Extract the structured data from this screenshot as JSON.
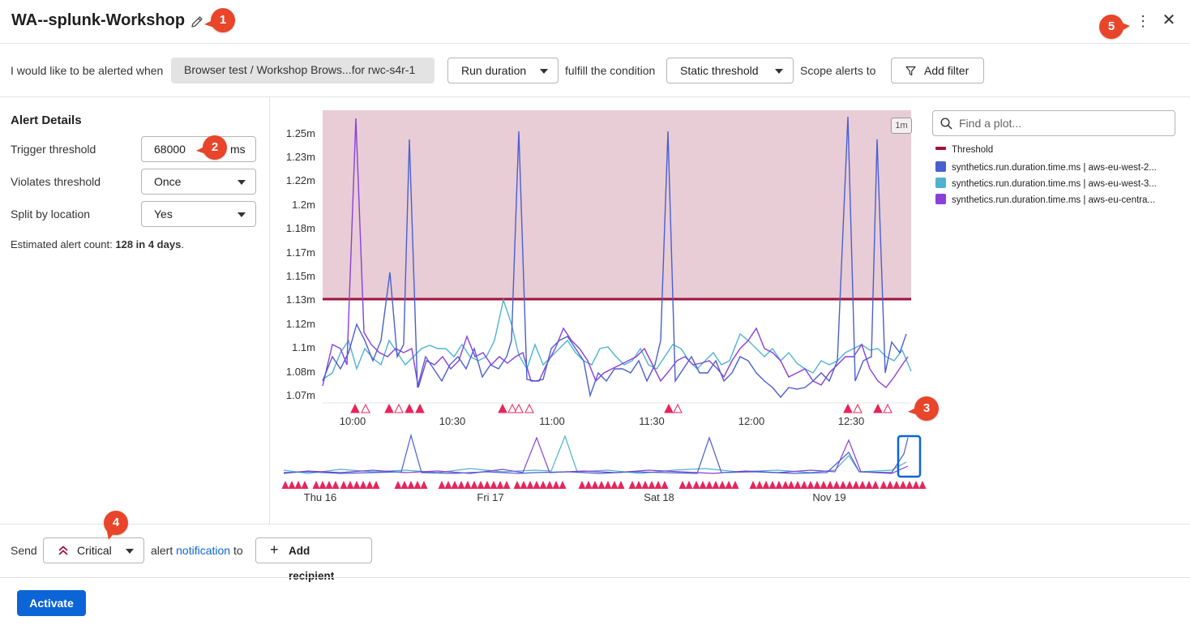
{
  "header": {
    "title": "WA--splunk-Workshop",
    "badges": [
      "1",
      "2",
      "3",
      "4",
      "5"
    ],
    "kebab_glyph": "⋮",
    "close_glyph": "✕"
  },
  "condition": {
    "intro": "I would like to be alerted when",
    "source": "Browser test  /  Workshop Brows...for rwc-s4r-1",
    "metric": "Run duration",
    "fulfill": "fulfill the condition",
    "condition": "Static threshold",
    "scope": "Scope alerts to",
    "add_filter": "Add filter"
  },
  "details": {
    "heading": "Alert Details",
    "trigger_label": "Trigger threshold",
    "trigger_value": "68000",
    "trigger_unit": "ms",
    "violates_label": "Violates threshold",
    "violates_value": "Once",
    "split_label": "Split by location",
    "split_value": "Yes",
    "estimate_prefix": "Estimated alert count:",
    "estimate_value": "128 in 4 days",
    "estimate_suffix": "."
  },
  "plot": {
    "search_placeholder": "Find a plot...",
    "resolution": "1m",
    "legend": [
      {
        "label": "Threshold",
        "color": "#a0123a"
      },
      {
        "label": "synthetics.run.duration.time.ms | aws-eu-west-2...",
        "color": "#4a5fd0"
      },
      {
        "label": "synthetics.run.duration.time.ms | aws-eu-west-3...",
        "color": "#4fb3d0"
      },
      {
        "label": "synthetics.run.duration.time.ms | aws-eu-centra...",
        "color": "#8a3fd9"
      }
    ]
  },
  "footer": {
    "send": "Send",
    "severity": "Critical",
    "alert": "alert",
    "notification": "notification",
    "to": "to",
    "add_recipient": "Add recipient",
    "activate": "Activate"
  },
  "chart_data": {
    "type": "line",
    "ylabel_ticks": [
      "1.25m",
      "1.23m",
      "1.22m",
      "1.2m",
      "1.18m",
      "1.17m",
      "1.15m",
      "1.13m",
      "1.12m",
      "1.1m",
      "1.08m",
      "1.07m"
    ],
    "x_ticks": [
      "10:00",
      "10:30",
      "11:00",
      "11:30",
      "12:00",
      "12:30"
    ],
    "overview_ticks": [
      "Thu 16",
      "Fri 17",
      "Sat 18",
      "Nov 19"
    ],
    "threshold": "1.13m",
    "series": [
      {
        "name": "synthetics.run.duration.time.ms | aws-eu-west-2...",
        "color": "#4a5fd0"
      },
      {
        "name": "synthetics.run.duration.time.ms | aws-eu-west-3...",
        "color": "#4fb3d0"
      },
      {
        "name": "synthetics.run.duration.time.ms | aws-eu-centra...",
        "color": "#8a3fd9"
      }
    ],
    "grid": false,
    "legend_position": "right"
  }
}
